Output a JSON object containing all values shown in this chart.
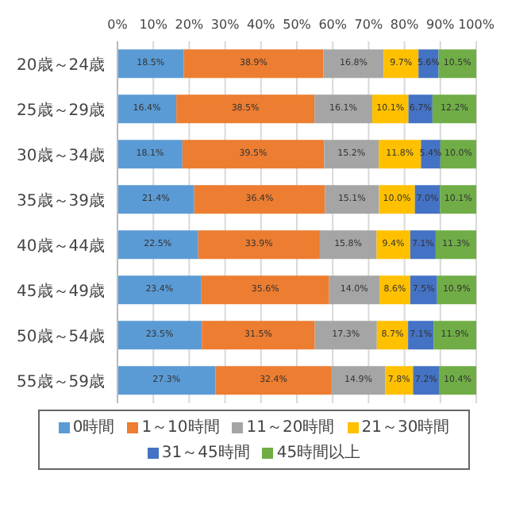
{
  "chart_data": {
    "type": "bar",
    "orientation": "horizontal",
    "stacked": true,
    "categories": [
      "20歳～24歳",
      "25歳～29歳",
      "30歳～34歳",
      "35歳～39歳",
      "40歳～44歳",
      "45歳～49歳",
      "50歳～54歳",
      "55歳～59歳"
    ],
    "series": [
      {
        "name": "0時間",
        "color": "#5b9bd5",
        "values": [
          18.5,
          16.4,
          18.1,
          21.4,
          22.5,
          23.4,
          23.5,
          27.3
        ],
        "value_labels": [
          "18.5%",
          "16.4%",
          "18.1%",
          "21.4%",
          "22.5%",
          "23.4%",
          "23.5%",
          "27.3%"
        ]
      },
      {
        "name": "1～10時間",
        "color": "#ed7d31",
        "values": [
          38.9,
          38.5,
          39.5,
          36.4,
          33.9,
          35.6,
          31.5,
          32.4
        ],
        "value_labels": [
          "38.9%",
          "38.5%",
          "39.5%",
          "36.4%",
          "33.9%",
          "35.6%",
          "31.5%",
          "32.4%"
        ]
      },
      {
        "name": "11～20時間",
        "color": "#a5a5a5",
        "values": [
          16.8,
          16.1,
          15.2,
          15.1,
          15.8,
          14.0,
          17.3,
          14.9
        ],
        "value_labels": [
          "16.8%",
          "16.1%",
          "15.2%",
          "15.1%",
          "15.8%",
          "14.0%",
          "17.3%",
          "14.9%"
        ]
      },
      {
        "name": "21～30時間",
        "color": "#ffc000",
        "values": [
          9.7,
          10.1,
          11.8,
          10.0,
          9.4,
          8.6,
          8.7,
          7.8
        ],
        "value_labels": [
          "9.7%",
          "10.1%",
          "11.8%",
          "10.0%",
          "9.4%",
          "8.6%",
          "8.7%",
          "7.8%"
        ]
      },
      {
        "name": "31～45時間",
        "color": "#4472c4",
        "values": [
          5.6,
          6.7,
          5.4,
          7.0,
          7.1,
          7.5,
          7.1,
          7.2
        ],
        "value_labels": [
          "5.6%",
          "6.7%",
          "5.4%",
          "7.0%",
          "7.1%",
          "7.5%",
          "7.1%",
          "7.2%"
        ]
      },
      {
        "name": "45時間以上",
        "color": "#70ad47",
        "values": [
          10.5,
          12.2,
          10.0,
          10.1,
          11.3,
          10.9,
          11.9,
          10.4
        ],
        "value_labels": [
          "10.5%",
          "12.2%",
          "10.0%",
          "10.1%",
          "11.3%",
          "10.9%",
          "11.9%",
          "10.4%"
        ]
      }
    ],
    "xlim": [
      0,
      100
    ],
    "xticks": [
      {
        "value": 0,
        "label": "0%"
      },
      {
        "value": 10,
        "label": "10%"
      },
      {
        "value": 20,
        "label": "20%"
      },
      {
        "value": 30,
        "label": "30%"
      },
      {
        "value": 40,
        "label": "40%"
      },
      {
        "value": 50,
        "label": "50%"
      },
      {
        "value": 60,
        "label": "60%"
      },
      {
        "value": 70,
        "label": "70%"
      },
      {
        "value": 80,
        "label": "80%"
      },
      {
        "value": 90,
        "label": "90%"
      },
      {
        "value": 100,
        "label": "100%"
      }
    ],
    "grid": "x",
    "legend": "bottom"
  }
}
